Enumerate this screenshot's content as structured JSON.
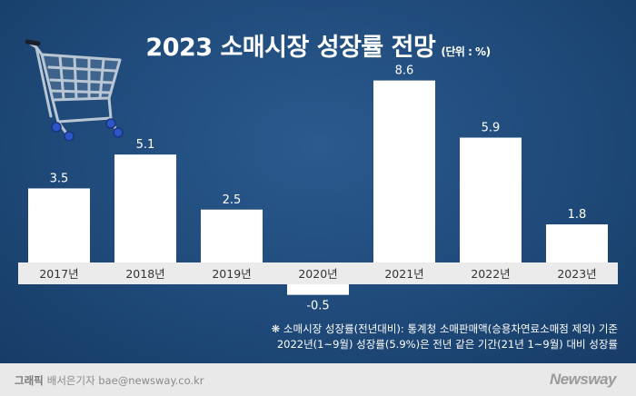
{
  "chart_data": {
    "type": "bar",
    "title": "2023 소매시장 성장률 전망",
    "unit_note": "(단위 : %)",
    "categories": [
      "2017년",
      "2018년",
      "2019년",
      "2020년",
      "2021년",
      "2022년",
      "2023년"
    ],
    "values": [
      3.5,
      5.1,
      2.5,
      -0.5,
      8.6,
      5.9,
      1.8
    ],
    "value_labels": [
      "3.5",
      "5.1",
      "2.5",
      "-0.5",
      "8.6",
      "5.9",
      "1.8"
    ],
    "ylim": [
      -0.8,
      8.8
    ],
    "xlabel": "",
    "ylabel": ""
  },
  "footnote": {
    "line1": "❋ 소매시장 성장률(전년대비): 통계청 소매판매액(승용차연료소매점 제외) 기준",
    "line2": "2022년(1~9월) 성장률(5.9%)은 전년 같은 기간(21년 1~9월) 대비 성장률"
  },
  "footer": {
    "label": "그래픽",
    "credit": "배서은기자 bae@newsway.co.kr",
    "brand": "Newsway"
  },
  "colors": {
    "background": "#1f4a7a",
    "bar": "#ffffff",
    "axis_band": "#ebebeb",
    "text": "#ffffff",
    "footer_bg": "#e9e9e9"
  }
}
